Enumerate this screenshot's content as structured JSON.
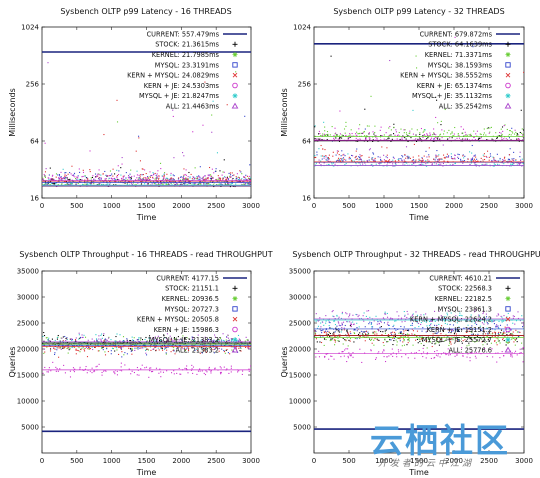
{
  "chart_data": [
    {
      "type": "scatter",
      "title": "Sysbench OLTP p99 Latency - 16 THREADS",
      "xlabel": "Time",
      "ylabel": "Milliseconds",
      "yscale": "log2",
      "xlim": [
        0,
        3000
      ],
      "ylim": [
        16,
        1024
      ],
      "xticks": [
        "0",
        "500",
        "1000",
        "1500",
        "2000",
        "2500",
        "3000"
      ],
      "yticks": [
        "16",
        "64",
        "256",
        "1024"
      ],
      "legend_position": "top-right",
      "series": [
        {
          "name": "CURRENT: 557.479ms",
          "style": "line",
          "color": "#1a237e",
          "value": 557.479
        },
        {
          "name": "STOCK: 21.3615ms",
          "marker": "+",
          "color": "#000000",
          "value": 21.3615
        },
        {
          "name": "KERNEL: 21.7985ms",
          "marker": "*",
          "color": "#66cc33",
          "value": 21.7985
        },
        {
          "name": "MYSQL: 23.3191ms",
          "marker": "square",
          "color": "#3344cc",
          "value": 23.3191
        },
        {
          "name": "KERN + MYSQL: 24.0829ms",
          "marker": "x",
          "color": "#dd3333",
          "value": 24.0829
        },
        {
          "name": "KERN + JE: 24.5303ms",
          "marker": "circle",
          "color": "#cc33cc",
          "value": 24.5303
        },
        {
          "name": "MYSQL + JE: 21.8247ms",
          "marker": "*",
          "color": "#33cccc",
          "value": 21.8247
        },
        {
          "name": "ALL: 21.4463ms",
          "marker": "triangle",
          "color": "#aa44cc",
          "value": 21.4463
        }
      ]
    },
    {
      "type": "scatter",
      "title": "Sysbench OLTP p99 Latency - 32 THREADS",
      "xlabel": "Time",
      "ylabel": "Milliseconds",
      "yscale": "log2",
      "xlim": [
        0,
        3000
      ],
      "ylim": [
        16,
        1024
      ],
      "xticks": [
        "0",
        "500",
        "1000",
        "1500",
        "2000",
        "2500",
        "3000"
      ],
      "yticks": [
        "16",
        "64",
        "256",
        "1024"
      ],
      "legend_position": "top-right",
      "series": [
        {
          "name": "CURRENT: 679.872ms",
          "style": "line",
          "color": "#1a237e",
          "value": 679.872
        },
        {
          "name": "STOCK: 64.1639ms",
          "marker": "+",
          "color": "#000000",
          "value": 64.1639
        },
        {
          "name": "KERNEL: 71.3371ms",
          "marker": "*",
          "color": "#66cc33",
          "value": 71.3371
        },
        {
          "name": "MYSQL: 38.1593ms",
          "marker": "square",
          "color": "#3344cc",
          "value": 38.1593
        },
        {
          "name": "KERN + MYSQL: 38.5552ms",
          "marker": "x",
          "color": "#dd3333",
          "value": 38.5552
        },
        {
          "name": "KERN + JE: 65.1374ms",
          "marker": "circle",
          "color": "#cc33cc",
          "value": 65.1374
        },
        {
          "name": "MYSQL + JE: 35.1132ms",
          "marker": "*",
          "color": "#33cccc",
          "value": 35.1132
        },
        {
          "name": "ALL: 35.2542ms",
          "marker": "triangle",
          "color": "#aa44cc",
          "value": 35.2542
        }
      ]
    },
    {
      "type": "scatter",
      "title": "Sysbench OLTP Throughput - 16 THREADS - read THROUGHPUT",
      "xlabel": "Time",
      "ylabel": "Queries",
      "xlim": [
        0,
        3000
      ],
      "ylim": [
        0,
        35000
      ],
      "xticks": [
        "0",
        "500",
        "1000",
        "1500",
        "2000",
        "2500",
        "3000"
      ],
      "yticks": [
        "5000",
        "10000",
        "15000",
        "20000",
        "25000",
        "30000",
        "35000"
      ],
      "legend_position": "top-right",
      "series": [
        {
          "name": "CURRENT: 4177.15",
          "style": "line",
          "color": "#1a237e",
          "value": 4177.15
        },
        {
          "name": "STOCK: 21151.1",
          "marker": "+",
          "color": "#000000",
          "value": 21151.1
        },
        {
          "name": "KERNEL: 20936.5",
          "marker": "*",
          "color": "#66cc33",
          "value": 20936.5
        },
        {
          "name": "MYSQL: 20727.3",
          "marker": "square",
          "color": "#3344cc",
          "value": 20727.3
        },
        {
          "name": "KERN + MYSQL: 20505.8",
          "marker": "x",
          "color": "#dd3333",
          "value": 20505.8
        },
        {
          "name": "KERN + JE: 15986.3",
          "marker": "circle",
          "color": "#cc33cc",
          "value": 15986.3
        },
        {
          "name": "MYSQL + JE: 21383.2",
          "marker": "*",
          "color": "#33cccc",
          "value": 21383.2
        },
        {
          "name": "ALL: 21383.2",
          "marker": "triangle",
          "color": "#aa44cc",
          "value": 21383.2
        }
      ]
    },
    {
      "type": "scatter",
      "title": "Sysbench OLTP Throughput - 32 THREADS - read THROUGHPUT",
      "xlabel": "Time",
      "ylabel": "Queries",
      "xlim": [
        0,
        3000
      ],
      "ylim": [
        0,
        35000
      ],
      "xticks": [
        "0",
        "500",
        "1000",
        "1500",
        "2000",
        "2500",
        "3000"
      ],
      "yticks": [
        "5000",
        "10000",
        "15000",
        "20000",
        "25000",
        "30000",
        "35000"
      ],
      "legend_position": "top-right",
      "series": [
        {
          "name": "CURRENT: 4610.21",
          "style": "line",
          "color": "#1a237e",
          "value": 4610.21
        },
        {
          "name": "STOCK: 22568.3",
          "marker": "+",
          "color": "#000000",
          "value": 22568.3
        },
        {
          "name": "KERNEL: 22182.5",
          "marker": "*",
          "color": "#66cc33",
          "value": 22182.5
        },
        {
          "name": "MYSQL: 23861.3",
          "marker": "square",
          "color": "#3344cc",
          "value": 23861.3
        },
        {
          "name": "KERN + MYSQL: 22624.2",
          "marker": "x",
          "color": "#dd3333",
          "value": 22624.2
        },
        {
          "name": "KERN + JE: 19151.2",
          "marker": "circle",
          "color": "#cc33cc",
          "value": 19151.2
        },
        {
          "name": "MYSQL + JE: 25572.7",
          "marker": "*",
          "color": "#33cccc",
          "value": 25572.7
        },
        {
          "name": "ALL: 25776.6",
          "marker": "triangle",
          "color": "#aa44cc",
          "value": 25776.6
        }
      ]
    }
  ],
  "watermark": {
    "text": "云栖社区",
    "subtext": "开发者的云中江湖",
    "color": "#4a9ad8"
  }
}
